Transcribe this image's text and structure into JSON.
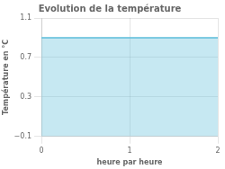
{
  "chart_data": {
    "type": "area",
    "title": "Evolution de la température",
    "xlabel": "heure par heure",
    "ylabel": "Température en °C",
    "x": [
      0,
      2
    ],
    "values": [
      0.9,
      0.9
    ],
    "color": "#5bbcda",
    "xlim": [
      0,
      2
    ],
    "ylim": [
      -0.1,
      1.1
    ],
    "xticks": [
      0,
      1,
      2
    ],
    "yticks": [
      {
        "value": -0.1,
        "label": "−0.1"
      },
      0.3,
      0.7,
      1.1
    ],
    "grid": true
  }
}
